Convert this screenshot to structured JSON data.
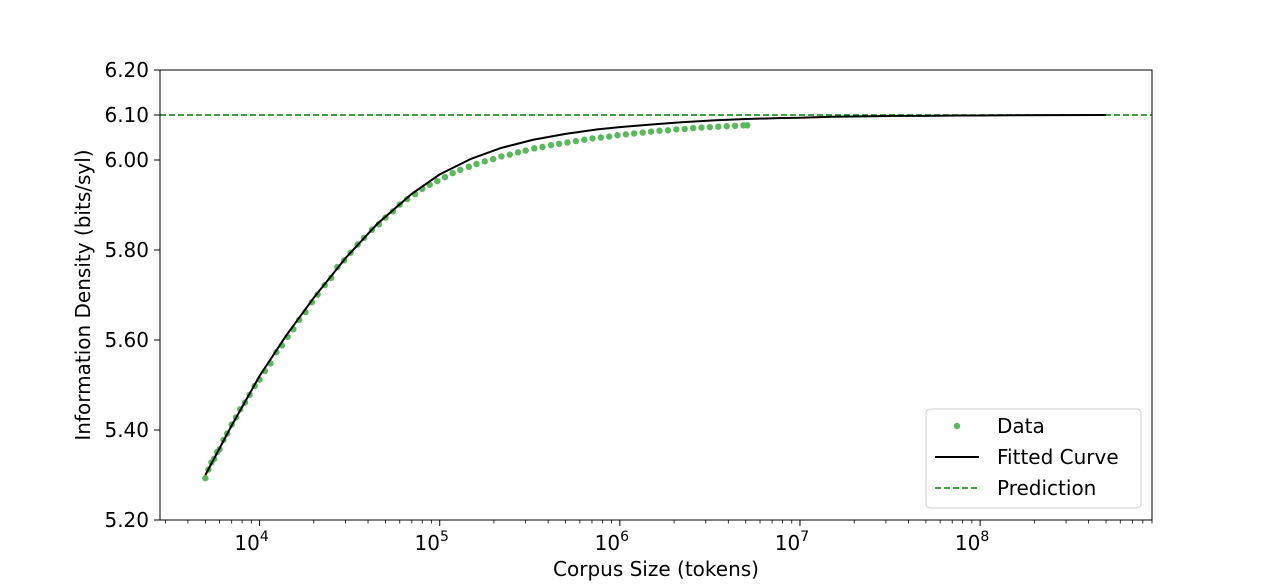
{
  "chart_data": {
    "type": "scatter",
    "xlabel": "Corpus Size (tokens)",
    "ylabel": "Information Density (bits/syl)",
    "x_scale": "log",
    "xlim": [
      2800,
      900000000
    ],
    "ylim": [
      5.2,
      6.2
    ],
    "x_tick_values": [
      10000,
      100000,
      1000000,
      10000000,
      100000000
    ],
    "x_tick_labels": [
      {
        "base": "10",
        "exp": "4"
      },
      {
        "base": "10",
        "exp": "5"
      },
      {
        "base": "10",
        "exp": "6"
      },
      {
        "base": "10",
        "exp": "7"
      },
      {
        "base": "10",
        "exp": "8"
      }
    ],
    "y_tick_values": [
      5.2,
      5.4,
      5.6,
      5.8,
      6.0,
      6.1,
      6.2
    ],
    "y_tick_labels": [
      "5.20",
      "5.40",
      "5.60",
      "5.80",
      "6.00",
      "6.10",
      "6.20"
    ],
    "grid": false,
    "legend_position": "bottom-right",
    "series": [
      {
        "name": "Data",
        "kind": "points",
        "color": "#5cb85c",
        "x": [
          5000,
          5200,
          5400,
          5600,
          5800,
          6000,
          6300,
          6600,
          7000,
          7400,
          7800,
          8300,
          8800,
          9400,
          10000,
          10700,
          11500,
          12400,
          13300,
          14300,
          15400,
          16600,
          18000,
          19500,
          21000,
          23000,
          25000,
          27000,
          29500,
          32000,
          35000,
          38000,
          42000,
          46000,
          50000,
          55000,
          60000,
          66000,
          73000,
          80000,
          88000,
          97000,
          107000,
          118000,
          130000,
          145000,
          160000,
          178000,
          198000,
          220000,
          245000,
          272000,
          300000,
          335000,
          372000,
          415000,
          460000,
          512000,
          570000,
          635000,
          705000,
          785000,
          873000,
          970000,
          1080000,
          1200000,
          1340000,
          1490000,
          1660000,
          1850000,
          2060000,
          2290000,
          2550000,
          2840000,
          3160000,
          3520000,
          3920000,
          4360000,
          4850000,
          5100000
        ],
        "y": [
          5.293,
          5.312,
          5.328,
          5.336,
          5.351,
          5.357,
          5.378,
          5.392,
          5.412,
          5.428,
          5.446,
          5.461,
          5.478,
          5.498,
          5.512,
          5.531,
          5.548,
          5.573,
          5.588,
          5.607,
          5.624,
          5.645,
          5.662,
          5.684,
          5.701,
          5.722,
          5.738,
          5.762,
          5.777,
          5.794,
          5.812,
          5.827,
          5.845,
          5.857,
          5.872,
          5.886,
          5.901,
          5.913,
          5.924,
          5.936,
          5.945,
          5.953,
          5.962,
          5.971,
          5.978,
          5.985,
          5.991,
          5.997,
          6.002,
          6.008,
          6.012,
          6.017,
          6.021,
          6.026,
          6.029,
          6.033,
          6.036,
          6.039,
          6.042,
          6.045,
          6.048,
          6.05,
          6.052,
          6.055,
          6.057,
          6.059,
          6.061,
          6.063,
          6.065,
          6.066,
          6.068,
          6.069,
          6.071,
          6.072,
          6.073,
          6.074,
          6.075,
          6.076,
          6.077,
          6.077
        ]
      },
      {
        "name": "Fitted Curve",
        "kind": "line",
        "color": "#000000",
        "x": [
          5000,
          7000,
          10000,
          14000,
          20000,
          30000,
          45000,
          70000,
          100000,
          150000,
          220000,
          330000,
          500000,
          750000,
          1000000,
          1500000,
          2200000,
          3300000,
          5000000,
          7500000,
          10000000,
          15000000,
          22000000,
          33000000,
          50000000,
          75000000,
          100000000,
          150000000,
          250000000,
          500000000
        ],
        "y": [
          5.3,
          5.41,
          5.52,
          5.609,
          5.694,
          5.782,
          5.858,
          5.925,
          5.968,
          6.003,
          6.027,
          6.045,
          6.058,
          6.068,
          6.073,
          6.079,
          6.084,
          6.088,
          6.091,
          6.093,
          6.094,
          6.096,
          6.097,
          6.098,
          6.098,
          6.099,
          6.099,
          6.0995,
          6.0997,
          6.0999
        ]
      },
      {
        "name": "Prediction",
        "kind": "hline",
        "color": "#008000",
        "value": 6.1
      }
    ]
  }
}
